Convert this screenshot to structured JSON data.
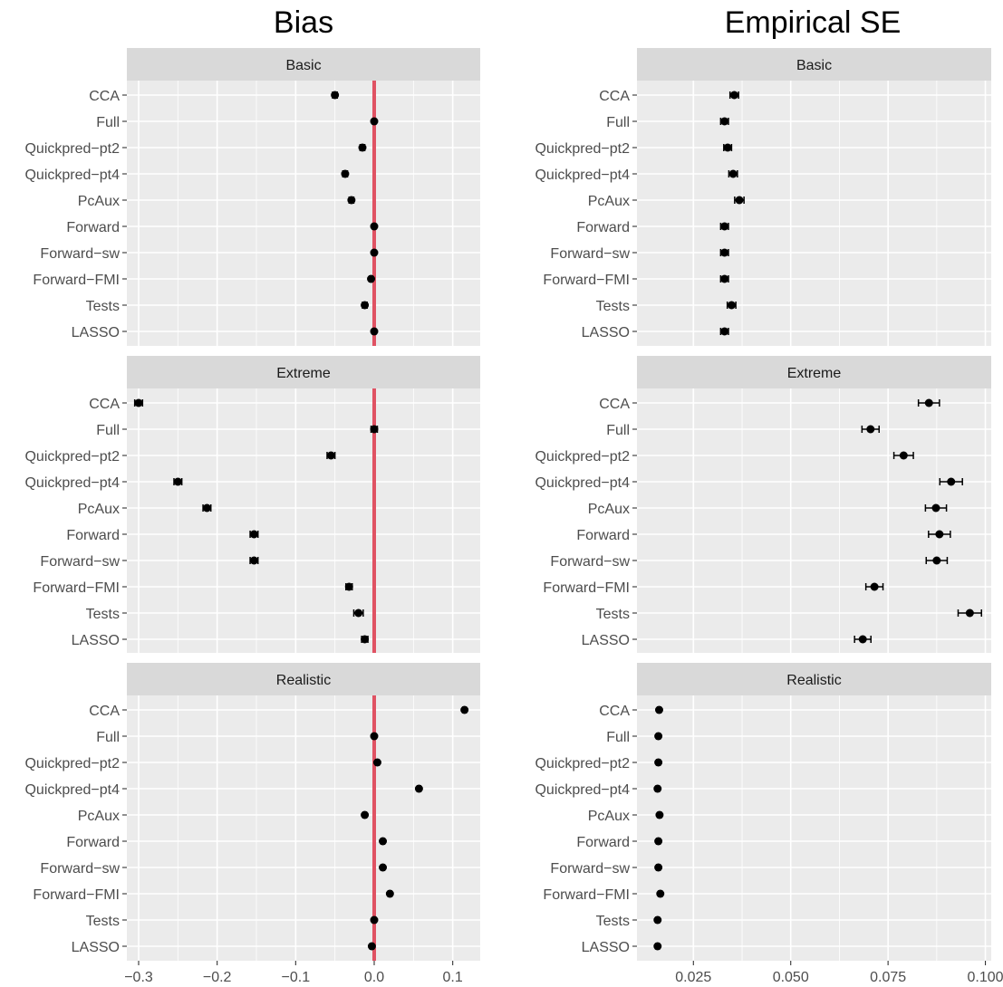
{
  "chart_data": [
    {
      "type": "scatter",
      "title": "Bias",
      "x_ticks": [
        -0.3,
        -0.2,
        -0.1,
        0.0,
        0.1
      ],
      "x_tick_labels": [
        "−0.3",
        "−0.2",
        "−0.1",
        "0.0",
        "0.1"
      ],
      "xlim": [
        -0.315,
        0.135
      ],
      "reference_line": {
        "x": 0,
        "color": "#e05263"
      },
      "methods": [
        "CCA",
        "Full",
        "Quickpred−pt2",
        "Quickpred−pt4",
        "PcAux",
        "Forward",
        "Forward−sw",
        "Forward−FMI",
        "Tests",
        "LASSO"
      ],
      "facets": [
        {
          "name": "Basic",
          "values": [
            -0.05,
            0.0,
            -0.015,
            -0.037,
            -0.029,
            0.0,
            0.0,
            -0.004,
            -0.012,
            0.0
          ],
          "err": [
            0.003,
            0.002,
            0.003,
            0.003,
            0.003,
            0.002,
            0.002,
            0.002,
            0.003,
            0.002
          ]
        },
        {
          "name": "Extreme",
          "values": [
            -0.3,
            0.0,
            -0.055,
            -0.25,
            -0.213,
            -0.153,
            -0.153,
            -0.032,
            -0.02,
            -0.012
          ],
          "err": [
            0.005,
            0.004,
            0.005,
            0.005,
            0.005,
            0.005,
            0.005,
            0.004,
            0.006,
            0.004
          ]
        },
        {
          "name": "Realistic",
          "values": [
            0.115,
            0.0,
            0.004,
            0.057,
            -0.012,
            0.011,
            0.011,
            0.02,
            0.0,
            -0.003
          ],
          "err": [
            0.002,
            0.002,
            0.002,
            0.002,
            0.002,
            0.002,
            0.002,
            0.002,
            0.002,
            0.002
          ]
        }
      ]
    },
    {
      "type": "scatter",
      "title": "Empirical SE",
      "x_ticks": [
        0.025,
        0.05,
        0.075,
        0.1
      ],
      "x_tick_labels": [
        "0.025",
        "0.050",
        "0.075",
        "0.100"
      ],
      "xlim": [
        0.0105,
        0.1015
      ],
      "methods": [
        "CCA",
        "Full",
        "Quickpred−pt2",
        "Quickpred−pt4",
        "PcAux",
        "Forward",
        "Forward−sw",
        "Forward−FMI",
        "Tests",
        "LASSO"
      ],
      "facets": [
        {
          "name": "Basic",
          "values": [
            0.0355,
            0.033,
            0.0338,
            0.0352,
            0.0368,
            0.033,
            0.033,
            0.033,
            0.0348,
            0.033
          ],
          "err": [
            0.0011,
            0.001,
            0.001,
            0.0011,
            0.0012,
            0.001,
            0.001,
            0.001,
            0.0011,
            0.001
          ]
        },
        {
          "name": "Extreme",
          "values": [
            0.0855,
            0.0705,
            0.079,
            0.0912,
            0.0873,
            0.0882,
            0.0875,
            0.0715,
            0.096,
            0.0685
          ],
          "err": [
            0.0027,
            0.0022,
            0.0025,
            0.0029,
            0.0027,
            0.0028,
            0.0027,
            0.0022,
            0.003,
            0.0021
          ]
        },
        {
          "name": "Realistic",
          "values": [
            0.0162,
            0.016,
            0.016,
            0.0158,
            0.0163,
            0.016,
            0.016,
            0.0165,
            0.0158,
            0.0158
          ],
          "err": [
            0.0004,
            0.0004,
            0.0004,
            0.0004,
            0.0004,
            0.0004,
            0.0004,
            0.0004,
            0.0004,
            0.0004
          ]
        }
      ]
    }
  ]
}
